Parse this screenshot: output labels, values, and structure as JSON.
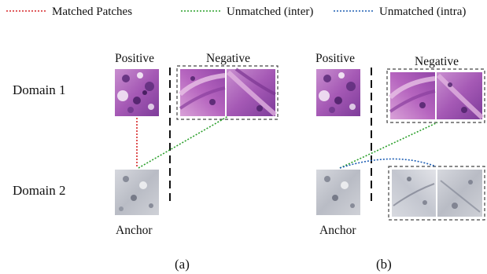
{
  "legend": {
    "matched": {
      "label": "Matched Patches",
      "color": "#d62728"
    },
    "unmatched_inter": {
      "label": "Unmatched (inter)",
      "color": "#2ca02c"
    },
    "unmatched_intra": {
      "label": "Unmatched (intra)",
      "color": "#1f5fb4"
    }
  },
  "rows": {
    "domain1": "Domain 1",
    "domain2": "Domain 2"
  },
  "panel_a": {
    "positive": "Positive",
    "negative": "Negative",
    "anchor": "Anchor",
    "caption": "(a)"
  },
  "panel_b": {
    "positive": "Positive",
    "negative": "Negative",
    "anchor": "Anchor",
    "caption": "(b)"
  },
  "colors": {
    "he_stain": "#b066b8",
    "he_stain_dark": "#5a2a78",
    "ihc_gray": "#c4c6cc",
    "ihc_gray_dark": "#6c7080"
  }
}
